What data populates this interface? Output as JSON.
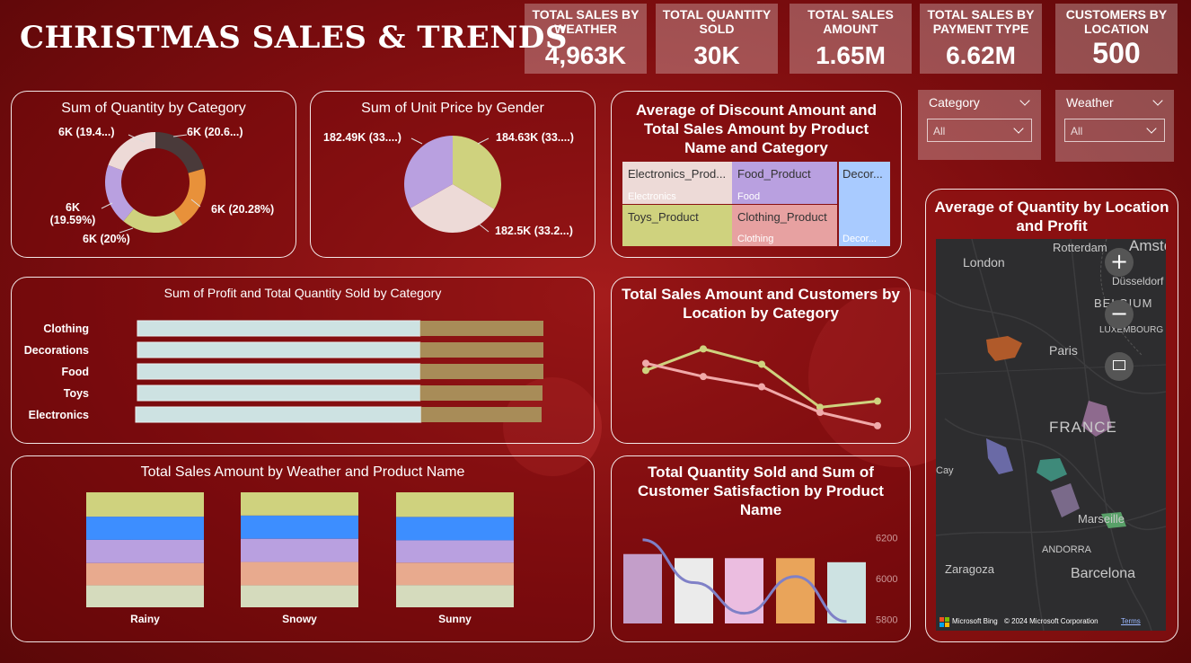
{
  "dashboard": {
    "title": "CHRISTMAS SALES & TRENDS"
  },
  "kpis": [
    {
      "label": "TOTAL SALES BY WEATHER",
      "value": "4,963K"
    },
    {
      "label": "TOTAL QUANTITY SOLD",
      "value": "30K"
    },
    {
      "label": "TOTAL SALES AMOUNT",
      "value": "1.65M"
    },
    {
      "label": "TOTAL SALES BY PAYMENT TYPE",
      "value": "6.62M"
    },
    {
      "label": "CUSTOMERS BY LOCATION",
      "value": "500"
    }
  ],
  "slicers": [
    {
      "label": "Category",
      "value": "All"
    },
    {
      "label": "Weather",
      "value": "All"
    }
  ],
  "colors": {
    "purple": "#b9a0e0",
    "green": "#cfd27e",
    "blush": "#eddad7",
    "dark": "#4a3a3a",
    "orange": "#e8913a",
    "lightblue": "#a9cbff",
    "pink": "#e7a1a1",
    "bluegreen": "#cde2e2",
    "gold": "#a88c58"
  },
  "chart_data": [
    {
      "id": "quantity_by_category",
      "type": "pie",
      "title": "Sum of Quantity by Category",
      "donut": true,
      "slices": [
        {
          "label": "6K (20.6...)",
          "value": 20.6,
          "color": "#4a3a3a"
        },
        {
          "label": "6K (20.28%)",
          "value": 20.28,
          "color": "#e8913a"
        },
        {
          "label": "6K (20%)",
          "value": 20.0,
          "color": "#cfd27e"
        },
        {
          "label": "6K (19.59%)",
          "value": 19.59,
          "color": "#b9a0e0"
        },
        {
          "label": "6K (19.4...)",
          "value": 19.4,
          "color": "#eddad7"
        }
      ]
    },
    {
      "id": "unit_price_by_gender",
      "type": "pie",
      "title": "Sum of Unit Price by Gender",
      "slices": [
        {
          "label": "184.63K (33....)",
          "value": 184.63,
          "color": "#cfd27e"
        },
        {
          "label": "182.5K (33.2...)",
          "value": 182.5,
          "color": "#eddad7"
        },
        {
          "label": "182.49K (33....)",
          "value": 182.49,
          "color": "#b9a0e0"
        }
      ]
    },
    {
      "id": "discount_treemap",
      "type": "treemap",
      "title": "Average of Discount Amount and Total Sales Amount by Product Name and Category",
      "cells": [
        {
          "product": "Electronics_Prod...",
          "category": "Electronics",
          "color": "#eddad7"
        },
        {
          "product": "Food_Product",
          "category": "Food",
          "color": "#b9a0e0"
        },
        {
          "product": "Decor...",
          "category": "Decor...",
          "color": "#a9cbff"
        },
        {
          "product": "Toys_Product",
          "category": "",
          "color": "#cfd27e"
        },
        {
          "product": "Clothing_Product",
          "category": "Clothing",
          "color": "#e7a1a1"
        }
      ]
    },
    {
      "id": "profit_quantity_by_category",
      "type": "bar",
      "orientation": "horizontal",
      "stacked": true,
      "title": "Sum of Profit and Total Quantity Sold by Category",
      "categories": [
        "Clothing",
        "Decorations",
        "Food",
        "Toys",
        "Electronics"
      ],
      "series": [
        {
          "values": [
            314,
            314,
            314,
            314,
            317
          ],
          "color": "#cde2e2"
        },
        {
          "values": [
            137,
            137,
            137,
            136,
            134
          ],
          "color": "#a88c58"
        }
      ]
    },
    {
      "id": "sales_customers_by_location",
      "type": "line",
      "title": "Total Sales Amount and Customers by Location by Category",
      "x": [
        1,
        2,
        3,
        4,
        5
      ],
      "series": [
        {
          "values": [
            0.62,
            0.83,
            0.68,
            0.26,
            0.32
          ],
          "color": "#cfd27e"
        },
        {
          "values": [
            0.69,
            0.56,
            0.46,
            0.21,
            0.08
          ],
          "color": "#f0a9a9"
        }
      ],
      "ylim": [
        0,
        1
      ]
    },
    {
      "id": "sales_by_weather_product",
      "type": "bar",
      "stacked": true,
      "title": "Total Sales Amount by Weather and Product Name",
      "categories": [
        "Rainy",
        "Snowy",
        "Sunny"
      ],
      "series": [
        {
          "values": [
            20,
            20,
            20
          ],
          "color": "#d5dbbd"
        },
        {
          "values": [
            20,
            21,
            20
          ],
          "color": "#e8aa8e"
        },
        {
          "values": [
            21,
            21,
            20
          ],
          "color": "#b9a0e0"
        },
        {
          "values": [
            21,
            21,
            21
          ],
          "color": "#3d8eff"
        },
        {
          "values": [
            22,
            21,
            22
          ],
          "color": "#cfd27e"
        }
      ]
    },
    {
      "id": "quantity_satisfaction_by_product",
      "type": "bar",
      "title": "Total Quantity Sold and Sum of Customer Satisfaction by Product Name",
      "categories": [
        "",
        "",
        "",
        "",
        ""
      ],
      "values": [
        6120,
        6100,
        6100,
        6100,
        6080
      ],
      "colors": [
        "#c39ec9",
        "#ebebeb",
        "#ebbde0",
        "#e9a45a",
        "#cde2e2"
      ],
      "line_series": {
        "values": [
          6190,
          5980,
          5830,
          6010,
          5790
        ],
        "color": "#7f80c7"
      },
      "ylim": [
        5780,
        6220
      ],
      "yticks": [
        "6200",
        "6000",
        "5800"
      ]
    },
    {
      "id": "quantity_by_location_profit",
      "type": "map",
      "title": "Average of Quantity by Location and Profit",
      "labels": [
        "Rotterdam",
        "Amster",
        "London",
        "Düsseldorf",
        "BELGIUM",
        "LUXEMBOURG",
        "Paris",
        "FRANCE",
        "Marseille",
        "ANDORRA",
        "Zaragoza",
        "Barcelona",
        "Cay"
      ],
      "attribution": {
        "brand": "Microsoft Bing",
        "copyright": "© 2024 Microsoft Corporation",
        "terms": "Terms"
      }
    }
  ]
}
